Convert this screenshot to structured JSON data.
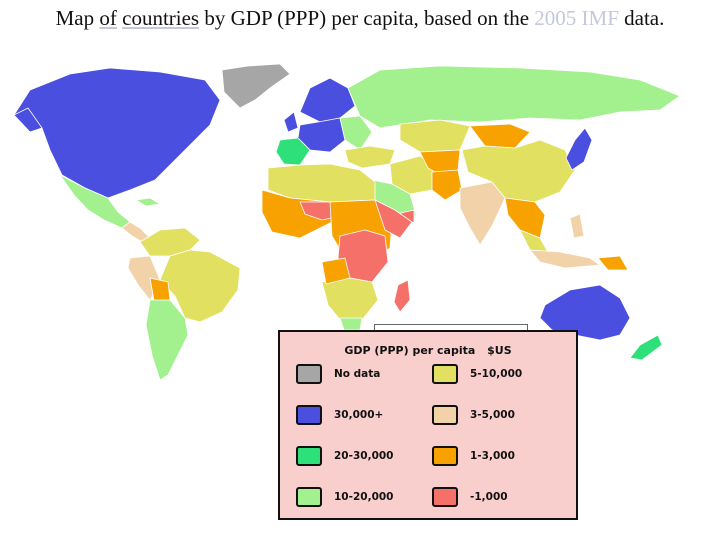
{
  "caption": {
    "before": "Map",
    "of": "of",
    "countries": "countries",
    "middle": "by GDP (PPP) per capita, based on the",
    "year_source": "2005 IMF",
    "after": "data."
  },
  "legend": {
    "title": "GDP (PPP) per capita",
    "unit": "$US",
    "items": [
      {
        "label": "No data",
        "color": "#a6a6a6"
      },
      {
        "label": "30,000+",
        "color": "#4a4fe0"
      },
      {
        "label": "20-30,000",
        "color": "#2ee07a"
      },
      {
        "label": "10-20,000",
        "color": "#a2f08e"
      },
      {
        "label": "5-10,000",
        "color": "#e2e060"
      },
      {
        "label": "3-5,000",
        "color": "#f2d2a8"
      },
      {
        "label": "1-3,000",
        "color": "#f7a200"
      },
      {
        "label": "-1,000",
        "color": "#f57068"
      }
    ]
  },
  "colors": {
    "no_data": "#a6a6a6",
    "c30k_plus": "#4a4fe0",
    "c20_30k": "#2ee07a",
    "c10_20k": "#a2f08e",
    "c5_10k": "#e2e060",
    "c3_5k": "#f2d2a8",
    "c1_3k": "#f7a200",
    "c_under_1k": "#f57068"
  }
}
